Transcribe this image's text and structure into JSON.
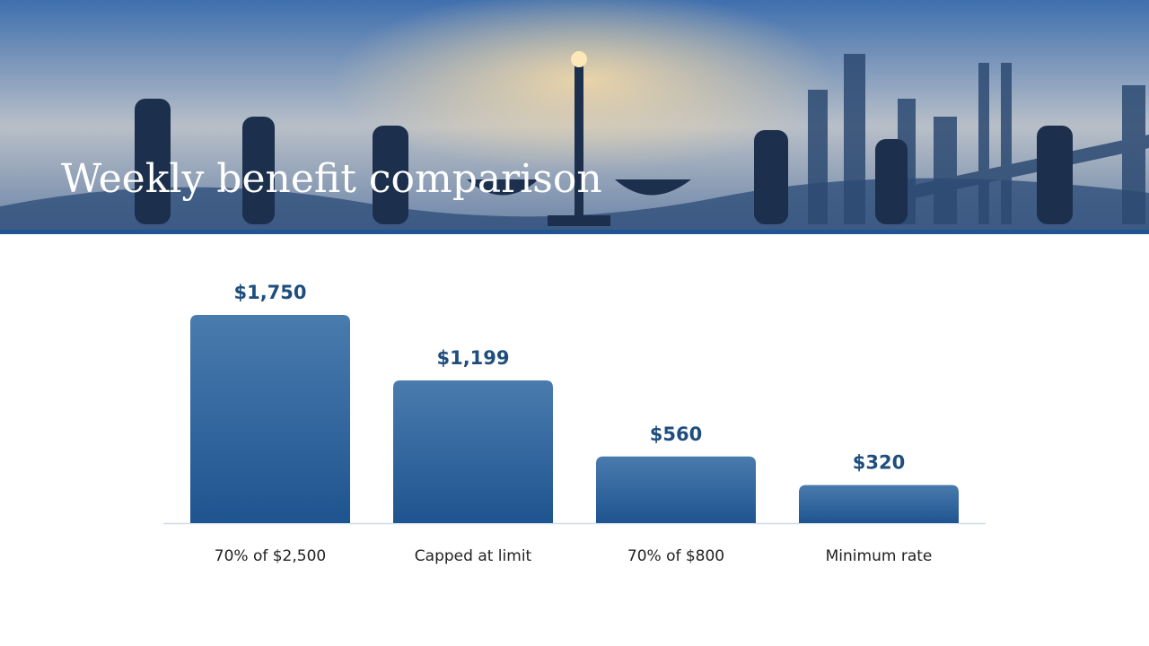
{
  "chart_data": {
    "type": "bar",
    "title": "Weekly benefit comparison",
    "categories": [
      "70% of $2,500",
      "Capped at limit",
      "70% of $800",
      "Minimum rate"
    ],
    "values": [
      1750,
      1199,
      560,
      320
    ],
    "value_labels": [
      "$1,750",
      "$1,199",
      "$560",
      "$320"
    ],
    "color": "#2a5d94"
  }
}
